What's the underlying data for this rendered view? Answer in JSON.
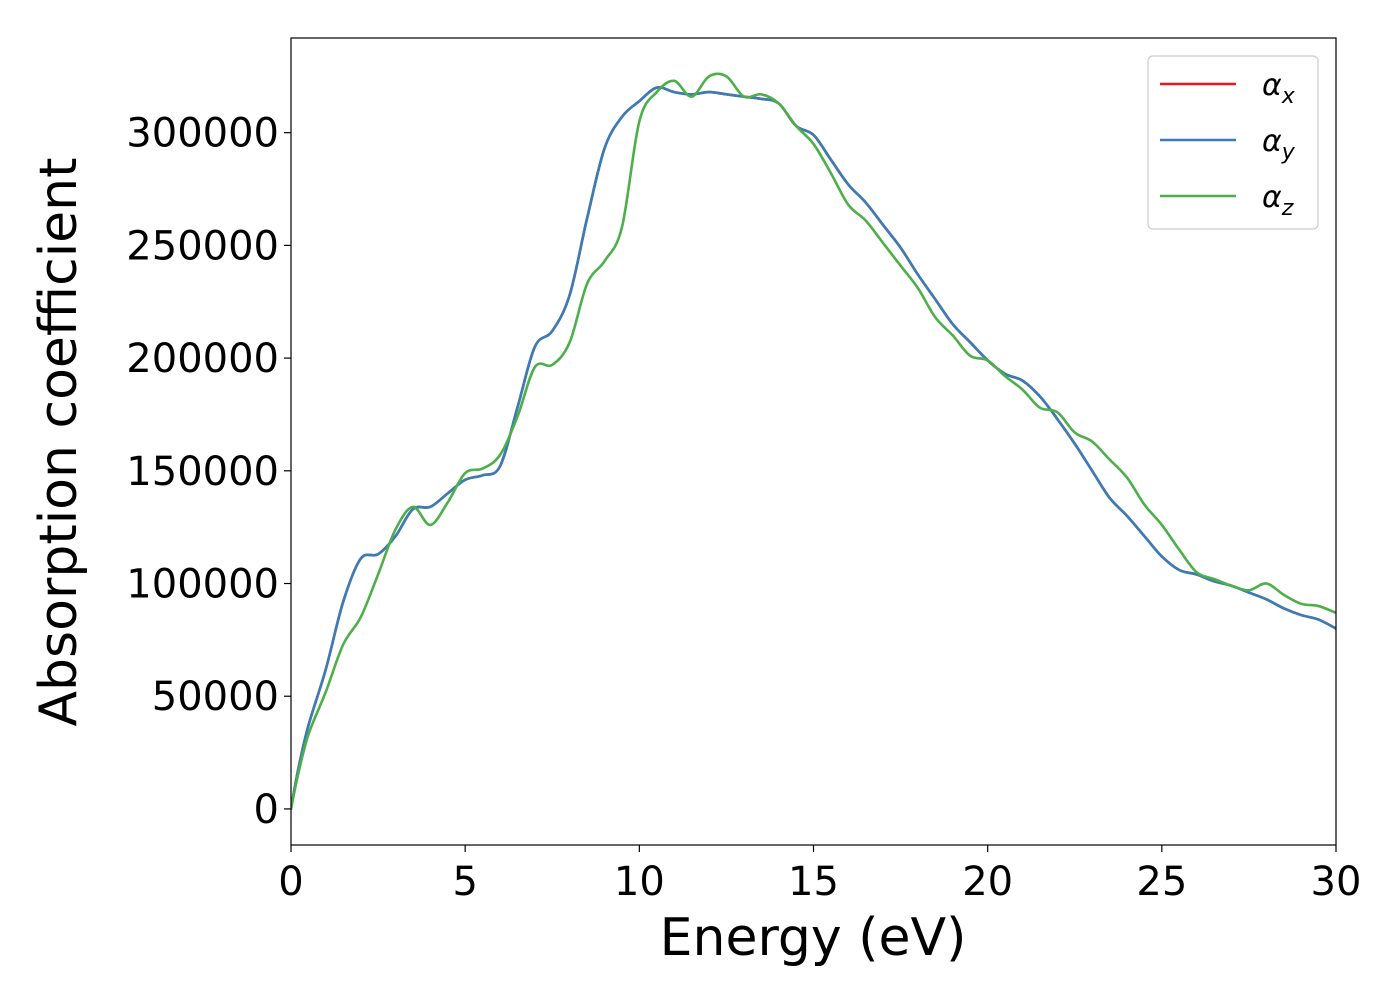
{
  "chart_data": {
    "type": "line",
    "title": "",
    "xlabel": "Energy (eV)",
    "ylabel": "Absorption coefficient",
    "xlim": [
      0,
      30
    ],
    "ylim": [
      -16000,
      342000
    ],
    "xticks": [
      0,
      5,
      10,
      15,
      20,
      25,
      30
    ],
    "xtick_labels": [
      "0",
      "5",
      "10",
      "15",
      "20",
      "25",
      "30"
    ],
    "yticks": [
      0,
      50000,
      100000,
      150000,
      200000,
      250000,
      300000
    ],
    "ytick_labels": [
      "0",
      "50000",
      "100000",
      "150000",
      "200000",
      "250000",
      "300000"
    ],
    "grid": false,
    "legend_position": "top-right",
    "series": [
      {
        "name": "α_x",
        "legend_main": "α",
        "legend_sub": "x",
        "color": "#e41a1c",
        "x": [
          0,
          0.2,
          0.5,
          1,
          1.5,
          2,
          2.5,
          3,
          3.5,
          4,
          4.5,
          5,
          5.5,
          6,
          6.5,
          7,
          7.5,
          8,
          8.5,
          9,
          9.5,
          10,
          10.5,
          11,
          11.5,
          12,
          12.5,
          13,
          13.5,
          14,
          14.5,
          15,
          15.5,
          16,
          16.5,
          17,
          17.5,
          18,
          18.5,
          19,
          19.5,
          20,
          20.5,
          21,
          21.5,
          22,
          22.5,
          23,
          23.5,
          24,
          24.5,
          25,
          25.5,
          26,
          26.5,
          27,
          27.5,
          28,
          28.5,
          29,
          29.5,
          30
        ],
        "y": [
          0,
          17000,
          37000,
          62000,
          92000,
          111000,
          113000,
          121000,
          133000,
          134000,
          140000,
          146000,
          148000,
          152000,
          178000,
          205000,
          212000,
          228000,
          262000,
          293000,
          307000,
          314000,
          320000,
          318000,
          317000,
          318000,
          317000,
          316000,
          315000,
          313000,
          303000,
          299000,
          288000,
          277000,
          269000,
          259000,
          249000,
          237000,
          226000,
          215000,
          207000,
          199000,
          193000,
          190000,
          183000,
          173000,
          162000,
          150000,
          138000,
          130000,
          121000,
          112000,
          106000,
          104000,
          101000,
          99000,
          96000,
          93000,
          89000,
          86000,
          84000,
          80000
        ]
      },
      {
        "name": "α_y",
        "legend_main": "α",
        "legend_sub": "y",
        "color": "#377eb8",
        "x": [
          0,
          0.2,
          0.5,
          1,
          1.5,
          2,
          2.5,
          3,
          3.5,
          4,
          4.5,
          5,
          5.5,
          6,
          6.5,
          7,
          7.5,
          8,
          8.5,
          9,
          9.5,
          10,
          10.5,
          11,
          11.5,
          12,
          12.5,
          13,
          13.5,
          14,
          14.5,
          15,
          15.5,
          16,
          16.5,
          17,
          17.5,
          18,
          18.5,
          19,
          19.5,
          20,
          20.5,
          21,
          21.5,
          22,
          22.5,
          23,
          23.5,
          24,
          24.5,
          25,
          25.5,
          26,
          26.5,
          27,
          27.5,
          28,
          28.5,
          29,
          29.5,
          30
        ],
        "y": [
          0,
          17000,
          37000,
          62000,
          92000,
          111000,
          113000,
          121000,
          133000,
          134000,
          140000,
          146000,
          148000,
          152000,
          178000,
          205000,
          212000,
          228000,
          262000,
          293000,
          307000,
          314000,
          320000,
          318000,
          317000,
          318000,
          317000,
          316000,
          315000,
          313000,
          303000,
          299000,
          288000,
          277000,
          269000,
          259000,
          249000,
          237000,
          226000,
          215000,
          207000,
          199000,
          193000,
          190000,
          183000,
          173000,
          162000,
          150000,
          138000,
          130000,
          121000,
          112000,
          106000,
          104000,
          101000,
          99000,
          96000,
          93000,
          89000,
          86000,
          84000,
          80000
        ]
      },
      {
        "name": "α_z",
        "legend_main": "α",
        "legend_sub": "z",
        "color": "#4daf4a",
        "x": [
          0,
          0.2,
          0.5,
          1,
          1.5,
          2,
          2.5,
          3,
          3.5,
          4,
          4.5,
          5,
          5.5,
          6,
          6.5,
          7,
          7.5,
          8,
          8.5,
          9,
          9.5,
          10,
          10.5,
          11,
          11.5,
          12,
          12.5,
          13,
          13.5,
          14,
          14.5,
          15,
          15.5,
          16,
          16.5,
          17,
          17.5,
          18,
          18.5,
          19,
          19.5,
          20,
          20.5,
          21,
          21.5,
          22,
          22.5,
          23,
          23.5,
          24,
          24.5,
          25,
          25.5,
          26,
          26.5,
          27,
          27.5,
          28,
          28.5,
          29,
          29.5,
          30
        ],
        "y": [
          0,
          15000,
          33000,
          52000,
          73000,
          85000,
          104000,
          124000,
          134000,
          126000,
          136000,
          149000,
          151000,
          157000,
          174000,
          196000,
          197000,
          207000,
          233000,
          243000,
          258000,
          305000,
          318000,
          323000,
          316000,
          325000,
          325000,
          316000,
          317000,
          313000,
          303000,
          295000,
          282000,
          268000,
          261000,
          251000,
          241000,
          231000,
          218000,
          210000,
          201000,
          199000,
          192000,
          186000,
          178000,
          176000,
          167000,
          163000,
          155000,
          147000,
          135000,
          126000,
          115000,
          105000,
          102000,
          99000,
          97000,
          100000,
          95000,
          91000,
          90000,
          87000
        ]
      }
    ]
  }
}
